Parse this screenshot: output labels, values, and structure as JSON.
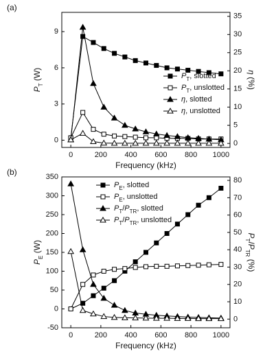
{
  "chart_data": [
    {
      "type": "line",
      "panel_label": "(a)",
      "xlabel": "Frequency (kHz)",
      "ylabel": [
        {
          "t": "P",
          "i": true
        },
        {
          "t": "T",
          "sub": true
        },
        {
          "t": " (W)"
        }
      ],
      "y2label": [
        {
          "t": "η",
          "i": true
        },
        {
          "t": " (%)"
        }
      ],
      "x": [
        0,
        80,
        150,
        220,
        290,
        360,
        430,
        500,
        570,
        640,
        710,
        780,
        850,
        920,
        1000
      ],
      "xlim": [
        -60,
        1060
      ],
      "xticks": [
        0,
        200,
        400,
        600,
        800,
        1000
      ],
      "ylim": [
        -0.6,
        10.6
      ],
      "yticks": [
        0,
        3,
        6,
        9
      ],
      "y2lim": [
        -1.1,
        36.1
      ],
      "y2ticks": [
        0,
        5,
        10,
        15,
        20,
        25,
        30,
        35
      ],
      "legend": "center right",
      "series": [
        {
          "name": [
            {
              "t": "P",
              "i": true
            },
            {
              "t": "T",
              "sub": true
            },
            {
              "t": ", slotted"
            }
          ],
          "color": "#000000",
          "marker": "square",
          "filled": true,
          "values": [
            0.2,
            8.6,
            8.1,
            7.6,
            7.2,
            6.9,
            6.6,
            6.4,
            6.2,
            6.0,
            5.9,
            5.8,
            5.7,
            5.6,
            5.5
          ]
        },
        {
          "name": [
            {
              "t": "P",
              "i": true
            },
            {
              "t": "T",
              "sub": true
            },
            {
              "t": ", unslotted"
            }
          ],
          "color": "#000000",
          "marker": "square",
          "filled": false,
          "values": [
            0.2,
            2.3,
            0.9,
            0.5,
            0.35,
            0.3,
            0.25,
            0.2,
            0.2,
            0.15,
            0.15,
            0.15,
            0.1,
            0.1,
            0.1
          ]
        },
        {
          "name": [
            {
              "t": "η",
              "i": true
            },
            {
              "t": ", slotted"
            }
          ],
          "color": "#000000",
          "marker": "triangle",
          "filled": true,
          "axis": "y2",
          "values": [
            1,
            32,
            16.5,
            10,
            7,
            5,
            4,
            3.2,
            2.6,
            2.2,
            1.9,
            1.6,
            1.4,
            1.2,
            1.0
          ]
        },
        {
          "name": [
            {
              "t": "η",
              "i": true
            },
            {
              "t": ", unslotted"
            }
          ],
          "color": "#000000",
          "marker": "triangle",
          "filled": false,
          "axis": "y2",
          "values": [
            1,
            2.8,
            0.5,
            0.1,
            0.05,
            0.05,
            0.05,
            0.05,
            0.05,
            0.05,
            0.05,
            0.05,
            0.05,
            0.05,
            0.05
          ]
        }
      ]
    },
    {
      "type": "line",
      "panel_label": "(b)",
      "xlabel": "Frequency (kHz)",
      "ylabel": [
        {
          "t": "P",
          "i": true
        },
        {
          "t": "E",
          "sub": true
        },
        {
          "t": " (W)"
        }
      ],
      "y2label": [
        {
          "t": "P",
          "i": true
        },
        {
          "t": "T",
          "sub": true
        },
        {
          "t": "/"
        },
        {
          "t": "P",
          "i": true
        },
        {
          "t": "TR",
          "sub": true
        },
        {
          "t": " (%)"
        }
      ],
      "x": [
        0,
        80,
        150,
        220,
        290,
        360,
        430,
        500,
        570,
        640,
        710,
        780,
        850,
        920,
        1000
      ],
      "xlim": [
        -60,
        1060
      ],
      "xticks": [
        0,
        200,
        400,
        600,
        800,
        1000
      ],
      "ylim": [
        -50,
        350
      ],
      "yticks": [
        -50,
        0,
        50,
        100,
        150,
        200,
        250,
        300,
        350
      ],
      "y2lim": [
        -5,
        82
      ],
      "y2ticks": [
        0,
        10,
        20,
        30,
        40,
        50,
        60,
        70,
        80
      ],
      "legend": "upper center",
      "series": [
        {
          "name": [
            {
              "t": "P",
              "i": true
            },
            {
              "t": "E",
              "sub": true
            },
            {
              "t": ", slotted"
            }
          ],
          "color": "#000000",
          "marker": "square",
          "filled": true,
          "values": [
            0,
            15,
            35,
            55,
            75,
            100,
            125,
            150,
            175,
            200,
            225,
            250,
            275,
            295,
            320
          ]
        },
        {
          "name": [
            {
              "t": "P",
              "i": true
            },
            {
              "t": "E",
              "sub": true
            },
            {
              "t": ", unslotted"
            }
          ],
          "color": "#000000",
          "marker": "square",
          "filled": false,
          "values": [
            0,
            65,
            90,
            100,
            105,
            107,
            110,
            112,
            113,
            113,
            114,
            115,
            116,
            117,
            118
          ]
        },
        {
          "name": [
            {
              "t": "P",
              "i": true
            },
            {
              "t": "T",
              "sub": true
            },
            {
              "t": "/"
            },
            {
              "t": "P",
              "i": true
            },
            {
              "t": "TR",
              "sub": true
            },
            {
              "t": ", slotted"
            }
          ],
          "color": "#000000",
          "marker": "triangle",
          "filled": true,
          "axis": "y2",
          "values": [
            78,
            40,
            20,
            12,
            8,
            5,
            3.5,
            2.8,
            2.2,
            1.8,
            1.5,
            1.2,
            1.0,
            0.8,
            0.6
          ]
        },
        {
          "name": [
            {
              "t": "P",
              "i": true
            },
            {
              "t": "T",
              "sub": true
            },
            {
              "t": "/"
            },
            {
              "t": "P",
              "i": true
            },
            {
              "t": "TR",
              "sub": true
            },
            {
              "t": ", unslotted"
            }
          ],
          "color": "#000000",
          "marker": "triangle",
          "filled": false,
          "axis": "y2",
          "values": [
            39,
            5,
            3,
            1.5,
            1,
            0.8,
            0.7,
            0.6,
            0.5,
            0.5,
            0.4,
            0.4,
            0.3,
            0.3,
            0.3
          ]
        }
      ]
    }
  ]
}
